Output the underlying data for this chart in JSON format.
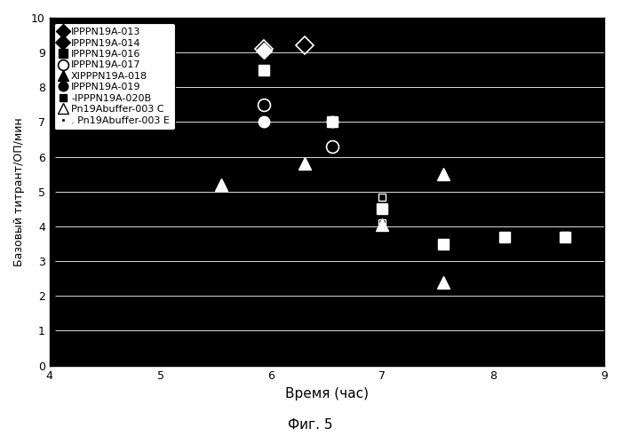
{
  "xlabel": "Время (час)",
  "ylabel": "Базовый титрант/ОП/мин",
  "caption": "Фиг. 5",
  "xlim": [
    4.0,
    9.0
  ],
  "ylim": [
    0,
    10
  ],
  "xticks": [
    4.0,
    5.0,
    6.0,
    7.0,
    8.0,
    9.0
  ],
  "yticks": [
    0,
    1,
    2,
    3,
    4,
    5,
    6,
    7,
    8,
    9,
    10
  ],
  "plot_bg_color": "#000000",
  "fig_bg_color": "#ffffff",
  "series": [
    {
      "label": "IPPPN19A-013",
      "legend_label": "IPPPN19A-013",
      "marker": "D",
      "fc": "white",
      "ec": "white",
      "ms": 9,
      "mew": 1.0,
      "points": [
        [
          5.93,
          9.05
        ]
      ]
    },
    {
      "label": "IPPPN19A-014",
      "legend_label": "IPPPN19A-014",
      "marker": "D",
      "fc": "none",
      "ec": "white",
      "ms": 10,
      "mew": 1.2,
      "points": [
        [
          5.93,
          9.1
        ],
        [
          6.3,
          9.2
        ]
      ]
    },
    {
      "label": "IPPPN19A-016",
      "legend_label": "IPPPN19A-016",
      "marker": "s",
      "fc": "white",
      "ec": "white",
      "ms": 9,
      "mew": 1.0,
      "points": [
        [
          5.93,
          8.5
        ],
        [
          6.55,
          7.0
        ],
        [
          7.0,
          4.5
        ],
        [
          7.55,
          3.5
        ],
        [
          8.1,
          3.7
        ],
        [
          8.65,
          3.7
        ]
      ]
    },
    {
      "label": "IPPPN19A-017",
      "legend_label": "IPPPN19A-017",
      "marker": "o",
      "fc": "none",
      "ec": "white",
      "ms": 10,
      "mew": 1.2,
      "points": [
        [
          5.93,
          7.5
        ],
        [
          6.55,
          6.3
        ]
      ]
    },
    {
      "label": "IPPPN19A-018",
      "legend_label": "XIPPPN19A-018",
      "marker": "^",
      "fc": "white",
      "ec": "white",
      "ms": 10,
      "mew": 1.0,
      "points": [
        [
          5.55,
          5.2
        ],
        [
          6.3,
          5.8
        ],
        [
          7.55,
          5.5
        ]
      ]
    },
    {
      "label": "IPPPN19A-019",
      "legend_label": "IPPPN19A-019",
      "marker": "o",
      "fc": "white",
      "ec": "white",
      "ms": 9,
      "mew": 1.0,
      "points": [
        [
          5.93,
          7.0
        ],
        [
          6.55,
          7.0
        ]
      ]
    },
    {
      "label": "IPPPN19A-020B",
      "legend_label": "-IPPPN19A-020B",
      "marker": "s",
      "fc": "none",
      "ec": "white",
      "ms": 6,
      "mew": 1.0,
      "points": [
        [
          7.0,
          4.85
        ],
        [
          7.0,
          4.1
        ],
        [
          7.55,
          3.5
        ],
        [
          8.1,
          3.7
        ],
        [
          8.65,
          3.75
        ]
      ]
    },
    {
      "label": "Pn19Abuffer-003 C",
      "legend_label": "Pn19Abuffer-003 C",
      "marker": "^",
      "fc": "white",
      "ec": "white",
      "ms": 10,
      "mew": 1.0,
      "points": [
        [
          7.0,
          4.05
        ],
        [
          7.55,
          2.4
        ]
      ]
    },
    {
      "label": "Pn19Abuffer-003 E",
      "legend_label": ". Pn19Abuffer-003 E",
      "marker": ".",
      "fc": "white",
      "ec": "white",
      "ms": 4,
      "mew": 0.5,
      "points": []
    }
  ]
}
